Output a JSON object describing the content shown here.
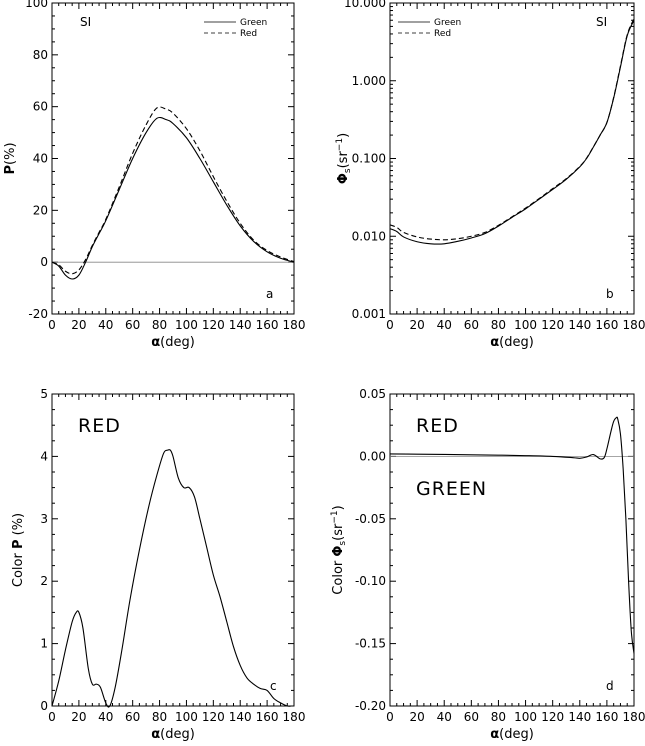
{
  "chart_data": [
    {
      "id": "a",
      "type": "line",
      "panel_label": "a",
      "annotation": "SI",
      "xlabel": "α(deg)",
      "ylabel": "P(%)",
      "xlim": [
        0,
        180
      ],
      "ylim": [
        -20,
        100
      ],
      "xticks": [
        0,
        20,
        40,
        60,
        80,
        100,
        120,
        140,
        160,
        180
      ],
      "yticks": [
        -20,
        0,
        20,
        40,
        60,
        80,
        100
      ],
      "legend": {
        "placement": "top-right",
        "entries": [
          "Green",
          "Red"
        ]
      },
      "zero_line": true,
      "series": [
        {
          "name": "Green",
          "dash": "solid",
          "x": [
            0,
            5,
            10,
            15,
            20,
            25,
            30,
            35,
            40,
            50,
            60,
            70,
            78,
            85,
            90,
            100,
            110,
            120,
            130,
            140,
            150,
            160,
            170,
            180
          ],
          "y": [
            0,
            -1.5,
            -5,
            -6.5,
            -5,
            0,
            6,
            11,
            16,
            28,
            40,
            50,
            55.5,
            55,
            53.5,
            48,
            40,
            31,
            22,
            14,
            8,
            4,
            1.5,
            0
          ]
        },
        {
          "name": "Red",
          "dash": "dashed",
          "x": [
            0,
            5,
            10,
            15,
            20,
            25,
            30,
            35,
            40,
            50,
            60,
            70,
            78,
            85,
            90,
            100,
            110,
            120,
            130,
            140,
            150,
            160,
            170,
            180
          ],
          "y": [
            0,
            -1,
            -3.5,
            -4.5,
            -3,
            1,
            6.5,
            11.5,
            16.5,
            29,
            42,
            53,
            59.5,
            59,
            57.5,
            51.5,
            43,
            33,
            23.5,
            15,
            8.5,
            4.5,
            2,
            0.2
          ]
        }
      ]
    },
    {
      "id": "b",
      "type": "line",
      "panel_label": "b",
      "annotation": "SI",
      "xlabel": "α(deg)",
      "ylabel": "Φs(sr⁻¹)",
      "ylabel_main": "Φ",
      "ylabel_sub": "s",
      "ylabel_rest": "(sr",
      "ylabel_sup": "−1",
      "ylabel_close": ")",
      "xlim": [
        0,
        180
      ],
      "ylim": [
        0.001,
        10
      ],
      "yscale": "log",
      "xticks": [
        0,
        20,
        40,
        60,
        80,
        100,
        120,
        140,
        160,
        180
      ],
      "yticks": [
        0.001,
        0.01,
        0.1,
        1,
        10
      ],
      "ytick_labels": [
        "0.001",
        "0.010",
        "0.100",
        "1.000",
        "10.000"
      ],
      "legend": {
        "placement": "top-left",
        "entries": [
          "Green",
          "Red"
        ]
      },
      "series": [
        {
          "name": "Green",
          "dash": "solid",
          "x": [
            0,
            5,
            10,
            20,
            30,
            40,
            50,
            60,
            70,
            80,
            90,
            100,
            110,
            120,
            130,
            140,
            145,
            150,
            155,
            160,
            165,
            170,
            175,
            180
          ],
          "y": [
            0.0125,
            0.0115,
            0.0098,
            0.0085,
            0.008,
            0.008,
            0.0086,
            0.0095,
            0.0108,
            0.0135,
            0.0175,
            0.0225,
            0.03,
            0.04,
            0.054,
            0.078,
            0.1,
            0.14,
            0.2,
            0.29,
            0.6,
            1.5,
            3.8,
            6
          ]
        },
        {
          "name": "Red",
          "dash": "dashed",
          "x": [
            0,
            5,
            10,
            20,
            30,
            40,
            50,
            60,
            70,
            80,
            90,
            100,
            110,
            120,
            130,
            140,
            145,
            150,
            155,
            160,
            165,
            170,
            175,
            180
          ],
          "y": [
            0.014,
            0.013,
            0.0112,
            0.0098,
            0.0092,
            0.009,
            0.0093,
            0.01,
            0.0112,
            0.0138,
            0.0178,
            0.023,
            0.0305,
            0.041,
            0.055,
            0.079,
            0.101,
            0.141,
            0.2,
            0.29,
            0.61,
            1.55,
            3.9,
            6.3
          ]
        }
      ]
    },
    {
      "id": "c",
      "type": "line",
      "panel_label": "c",
      "annotation": "RED",
      "xlabel": "α(deg)",
      "ylabel": "Color P (%)",
      "ylabel_prefix": "Color ",
      "ylabel_bold": "P",
      "ylabel_suffix": " (%)",
      "xlim": [
        0,
        180
      ],
      "ylim": [
        0,
        5
      ],
      "xticks": [
        0,
        20,
        40,
        60,
        80,
        100,
        120,
        140,
        160,
        180
      ],
      "yticks": [
        0,
        1,
        2,
        3,
        4,
        5
      ],
      "series": [
        {
          "name": "",
          "dash": "solid",
          "x": [
            0,
            5,
            10,
            15,
            18,
            20,
            23,
            27,
            30,
            33,
            36,
            40,
            43,
            47,
            52,
            58,
            65,
            72,
            78,
            83,
            86,
            88,
            90,
            94,
            98,
            102,
            106,
            110,
            115,
            120,
            125,
            130,
            135,
            140,
            145,
            150,
            155,
            160,
            165,
            170,
            175,
            178
          ],
          "y": [
            0,
            0.4,
            0.9,
            1.35,
            1.5,
            1.5,
            1.25,
            0.6,
            0.35,
            0.35,
            0.3,
            0.05,
            0.0,
            0.3,
            0.9,
            1.7,
            2.5,
            3.2,
            3.7,
            4.05,
            4.1,
            4.1,
            4.0,
            3.65,
            3.5,
            3.5,
            3.35,
            3.0,
            2.55,
            2.1,
            1.75,
            1.35,
            0.95,
            0.65,
            0.45,
            0.35,
            0.28,
            0.25,
            0.12,
            0.05,
            0.0,
            0.0
          ]
        }
      ]
    },
    {
      "id": "d",
      "type": "line",
      "panel_label": "d",
      "annotation_top": "RED",
      "annotation_bottom": "GREEN",
      "xlabel": "α(deg)",
      "ylabel": "Color Φs(sr⁻¹)",
      "ylabel_prefix": "Color ",
      "ylabel_main": "Φ",
      "ylabel_sub": "s",
      "ylabel_rest": "(sr",
      "ylabel_sup": "−1",
      "ylabel_close": ")",
      "xlim": [
        0,
        180
      ],
      "ylim": [
        -0.2,
        0.05
      ],
      "xticks": [
        0,
        20,
        40,
        60,
        80,
        100,
        120,
        140,
        160,
        180
      ],
      "yticks": [
        -0.2,
        -0.15,
        -0.1,
        -0.05,
        0.0,
        0.05
      ],
      "ytick_labels": [
        "-0.20",
        "-0.15",
        "-0.10",
        "-0.05",
        "0.00",
        "0.05"
      ],
      "zero_line": true,
      "series": [
        {
          "name": "",
          "dash": "solid",
          "x": [
            0,
            20,
            40,
            60,
            80,
            100,
            120,
            135,
            140,
            145,
            150,
            155,
            158,
            160,
            163,
            165,
            167,
            168,
            170,
            172,
            174,
            176,
            178,
            180
          ],
          "y": [
            0.002,
            0.0018,
            0.0016,
            0.0013,
            0.001,
            0.0006,
            0.0,
            -0.001,
            -0.0015,
            -0.0005,
            0.0015,
            -0.002,
            -0.001,
            0.006,
            0.02,
            0.028,
            0.031,
            0.03,
            0.018,
            -0.01,
            -0.05,
            -0.1,
            -0.14,
            -0.158
          ]
        }
      ]
    }
  ]
}
